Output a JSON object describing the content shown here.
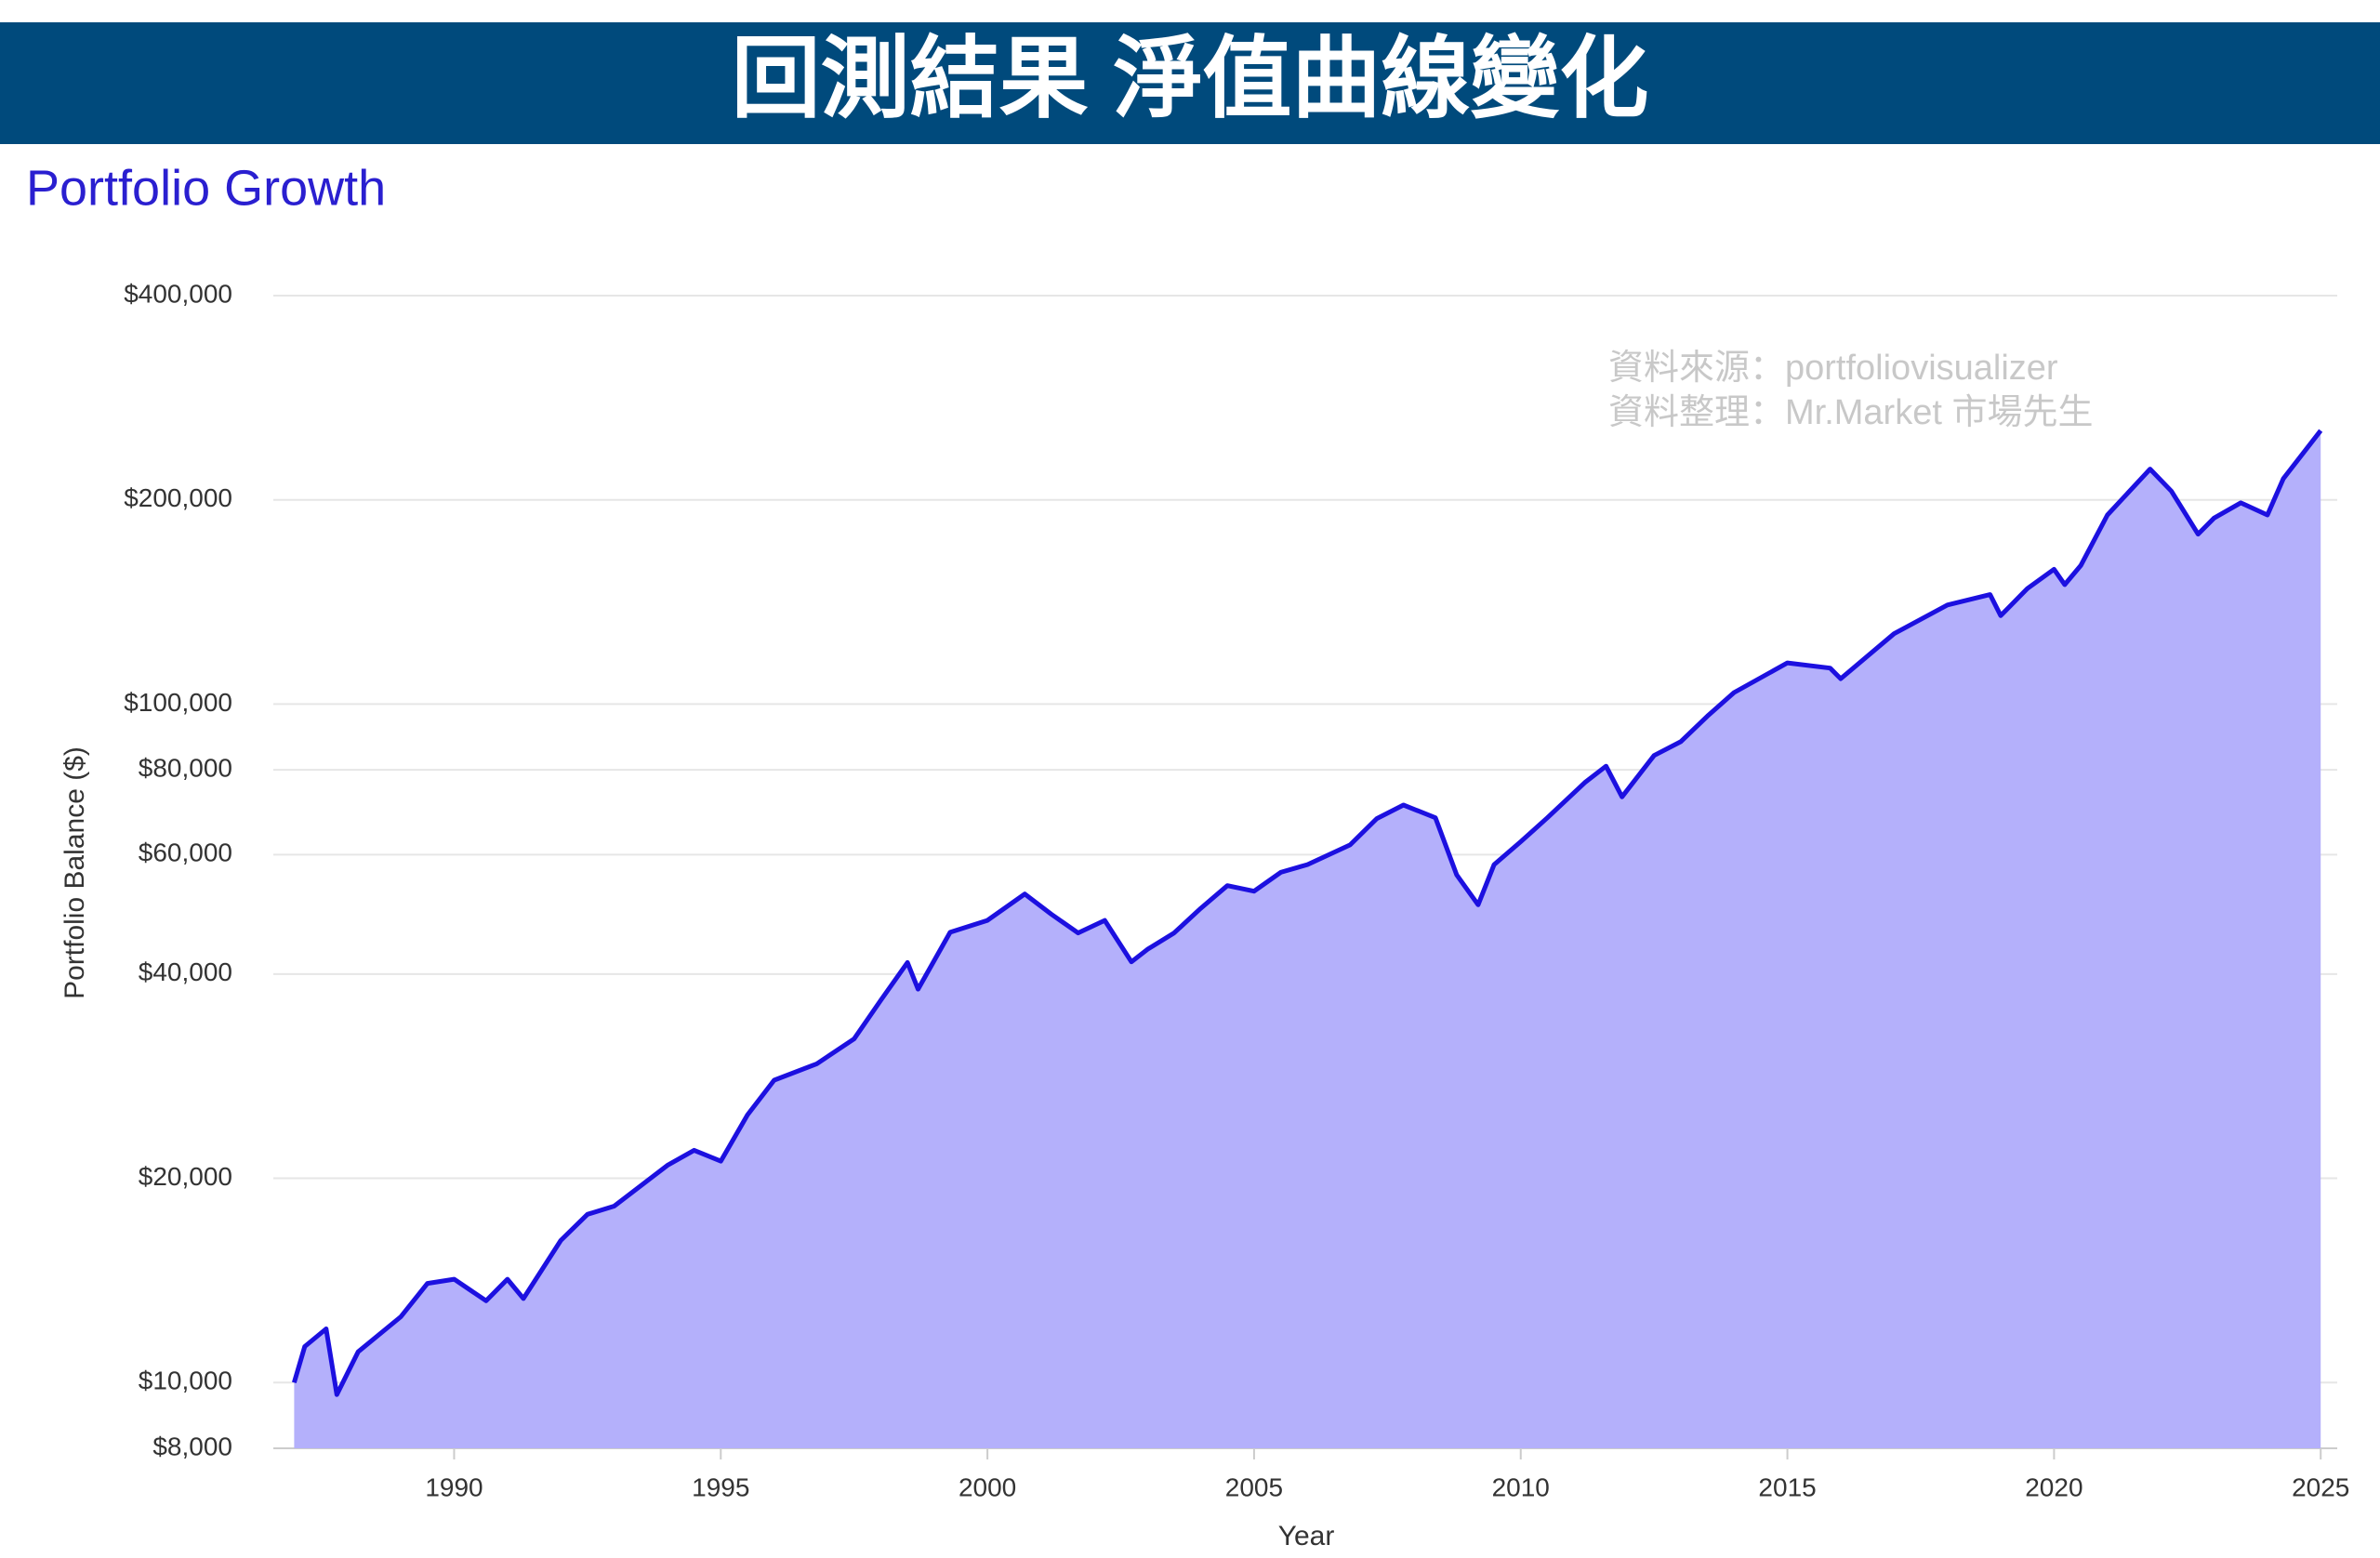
{
  "header": {
    "title": "回測結果 淨值曲線變化"
  },
  "chart_data": {
    "type": "area",
    "title": "Portfolio Growth",
    "x_label": "Year",
    "y_label": "Portfolio Balance ($)",
    "annotations": [
      "資料來源：portfoliovisualizer",
      "資料整理：Mr.Market 市場先生"
    ],
    "log_scale_y": true,
    "grid": true,
    "color": "#1c10e0",
    "fill_color": "#b4b0fb",
    "x": [
      1987.0,
      1987.2,
      1987.6,
      1987.8,
      1988.2,
      1989.0,
      1989.5,
      1990.0,
      1990.6,
      1991.0,
      1991.3,
      1992.0,
      1992.5,
      1993.0,
      1994.0,
      1994.5,
      1995.0,
      1995.5,
      1996.0,
      1996.8,
      1997.5,
      1998.0,
      1998.5,
      1998.7,
      1999.3,
      2000.0,
      2000.7,
      2001.2,
      2001.7,
      2002.2,
      2002.7,
      2003.0,
      2003.5,
      2004.0,
      2004.5,
      2005.0,
      2005.5,
      2006.0,
      2006.8,
      2007.3,
      2007.8,
      2008.4,
      2008.8,
      2009.2,
      2009.5,
      2010.0,
      2010.5,
      2011.2,
      2011.6,
      2011.9,
      2012.5,
      2013.0,
      2013.5,
      2014.0,
      2015.0,
      2015.8,
      2016.0,
      2017.0,
      2018.0,
      2018.8,
      2019.0,
      2019.5,
      2020.0,
      2020.2,
      2020.5,
      2021.0,
      2021.8,
      2022.2,
      2022.7,
      2023.0,
      2023.5,
      2024.0,
      2024.3,
      2025.0
    ],
    "values": [
      10000,
      11300,
      12000,
      9600,
      11100,
      12500,
      14000,
      14200,
      13200,
      14200,
      13300,
      16200,
      17700,
      18200,
      20900,
      22000,
      21200,
      24800,
      27900,
      29500,
      32100,
      36600,
      41600,
      38000,
      46100,
      48000,
      52500,
      49000,
      46000,
      48000,
      41700,
      43500,
      46000,
      50000,
      54000,
      53000,
      56500,
      58000,
      62000,
      67800,
      71000,
      68000,
      56000,
      50600,
      58000,
      62700,
      68000,
      76600,
      81000,
      73000,
      84000,
      88000,
      96000,
      104000,
      115000,
      113000,
      109000,
      127000,
      140000,
      145000,
      135000,
      148000,
      158000,
      150000,
      160000,
      190000,
      222000,
      206000,
      178000,
      188000,
      198000,
      190000,
      215000,
      253000
    ],
    "xlim": [
      1986.61,
      2025.31
    ],
    "ylim": [
      8000,
      400000
    ],
    "xticks": [
      1990,
      1995,
      2000,
      2005,
      2010,
      2015,
      2020,
      2025
    ],
    "yticks": [
      {
        "value": 8000,
        "label": "$8,000"
      },
      {
        "value": 10000,
        "label": "$10,000"
      },
      {
        "value": 20000,
        "label": "$20,000"
      },
      {
        "value": 40000,
        "label": "$40,000"
      },
      {
        "value": 60000,
        "label": "$60,000"
      },
      {
        "value": 80000,
        "label": "$80,000"
      },
      {
        "value": 100000,
        "label": "$100,000"
      },
      {
        "value": 200000,
        "label": "$200,000"
      },
      {
        "value": 400000,
        "label": "$400,000"
      }
    ]
  }
}
